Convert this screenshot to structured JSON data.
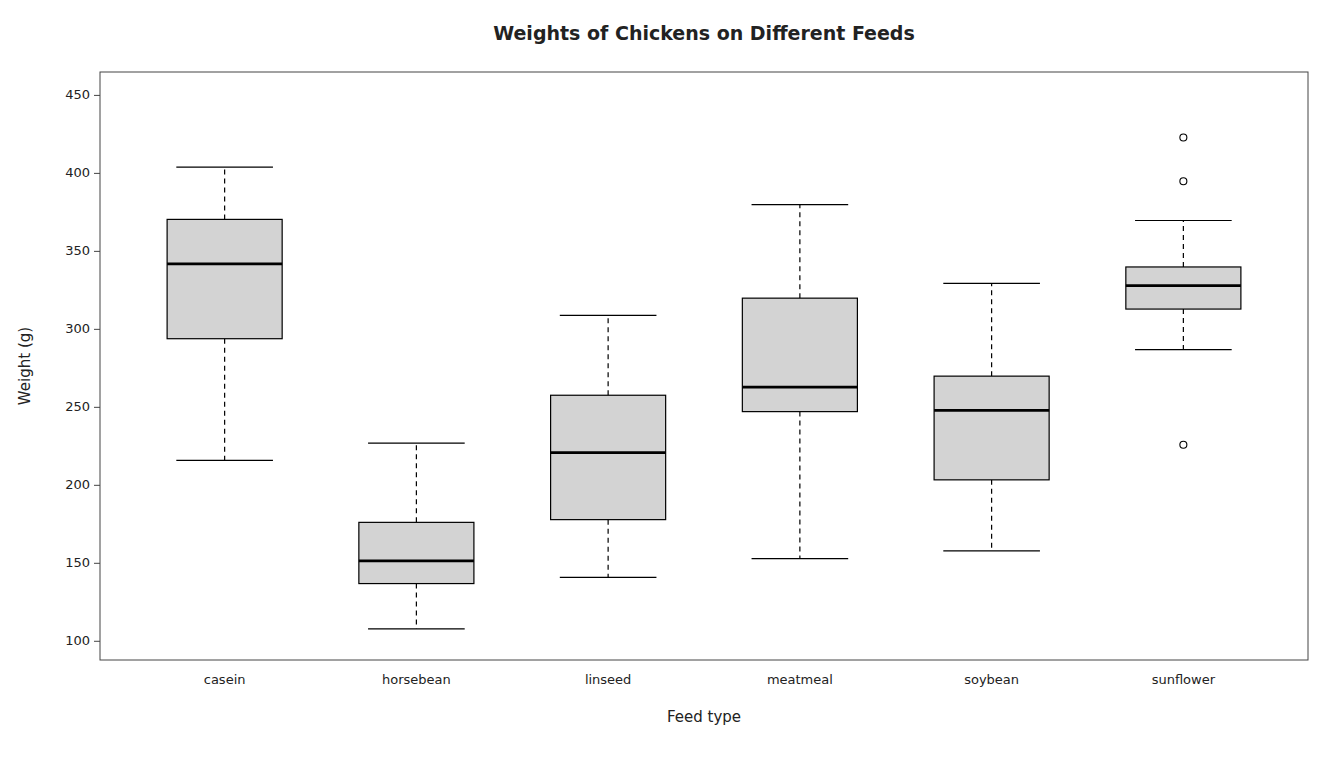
{
  "chart_data": {
    "type": "box",
    "title": "Weights of Chickens on Different Feeds",
    "x_label": "Feed type",
    "y_label": "Weight (g)",
    "categories": [
      "casein",
      "horsebean",
      "linseed",
      "meatmeal",
      "soybean",
      "sunflower"
    ],
    "boxes": [
      {
        "q1": 294.0,
        "median": 342.0,
        "q3": 370.5,
        "whisker_low": 216.0,
        "whisker_high": 404.0,
        "outliers": []
      },
      {
        "q1": 137.0,
        "median": 151.5,
        "q3": 176.25,
        "whisker_low": 108.0,
        "whisker_high": 227.0,
        "outliers": []
      },
      {
        "q1": 178.0,
        "median": 221.0,
        "q3": 257.75,
        "whisker_low": 141.0,
        "whisker_high": 309.0,
        "outliers": []
      },
      {
        "q1": 247.25,
        "median": 263.0,
        "q3": 320.0,
        "whisker_low": 153.0,
        "whisker_high": 380.0,
        "outliers": []
      },
      {
        "q1": 203.5,
        "median": 248.0,
        "q3": 270.0,
        "whisker_low": 158.0,
        "whisker_high": 329.5,
        "outliers": []
      },
      {
        "q1": 313.0,
        "median": 328.0,
        "q3": 340.0,
        "whisker_low": 287.0,
        "whisker_high": 369.8,
        "outliers": [
          226.0,
          395.0,
          423.0
        ]
      }
    ],
    "color": "#d3d3d3",
    "ylim": [
      88,
      465
    ],
    "yticks": [
      100,
      150,
      200,
      250,
      300,
      350,
      400,
      450
    ],
    "grid": false
  }
}
